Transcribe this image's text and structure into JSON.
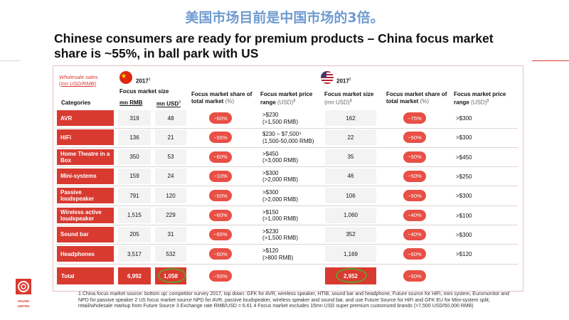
{
  "cn_title": "美国市场目前是中国市场的3倍。",
  "headline": "Chinese consumers are ready for premium products – China focus market share is ~55%, in ball park with US",
  "table": {
    "wholesale_line1": "Wholesale sales",
    "wholesale_line2": "(mn USD/RMB)",
    "categories_header": "Categories",
    "china": {
      "year": "2017",
      "year_note": "1",
      "size_header": "Focus market size",
      "rmb_header": "mn RMB",
      "usd_header": "mn USD",
      "usd_note": "3",
      "share_header": "Focus market share of total market",
      "share_unit": "(%)",
      "price_header": "Focus market price range",
      "price_unit": "(USD)",
      "price_note": "3"
    },
    "us": {
      "year": "2017",
      "year_note": "2",
      "size_header": "Focus market size",
      "size_unit": "(mn USD)",
      "size_note": "3",
      "share_header": "Focus market share of total market",
      "share_unit": "(%)",
      "price_header": "Focus market price range",
      "price_unit": "(USD)",
      "price_note": "3"
    },
    "rows": [
      {
        "category": "AVR",
        "rmb": "319",
        "usd": "48",
        "cn_share": "~60%",
        "cn_price1": ">$230",
        "cn_price2": "(>1,500 RMB)",
        "us_size": "162",
        "us_share": "~75%",
        "us_price": ">$300"
      },
      {
        "category": "HiFi",
        "rmb": "136",
        "usd": "21",
        "cn_share": "~55%",
        "cn_price1": "$230 – $7,500⁴",
        "cn_price2": "(1,500-50,000 RMB)",
        "us_size": "22",
        "us_share": "~50%",
        "us_price": ">$300"
      },
      {
        "category": "Home Theatre in a Box",
        "rmb": "350",
        "usd": "53",
        "cn_share": "~60%",
        "cn_price1": ">$450",
        "cn_price2": "(>3,000 RMB)",
        "us_size": "35",
        "us_share": "~50%",
        "us_price": ">$450"
      },
      {
        "category": "Mini-systems",
        "rmb": "159",
        "usd": "24",
        "cn_share": "~10%",
        "cn_price1": ">$300",
        "cn_price2": "(>2,000 RMB)",
        "us_size": "46",
        "us_share": "~50%",
        "us_price": ">$250"
      },
      {
        "category": "Passive loudspeaker",
        "rmb": "791",
        "usd": "120",
        "cn_share": "~50%",
        "cn_price1": ">$300",
        "cn_price2": "(>2,000 RMB)",
        "us_size": "106",
        "us_share": "~50%",
        "us_price": ">$300"
      },
      {
        "category": "Wireless active loudspeaker",
        "rmb": "1,515",
        "usd": "229",
        "cn_share": "~60%",
        "cn_price1": ">$150",
        "cn_price2": "(>1,000 RMB)",
        "us_size": "1,060",
        "us_share": "~40%",
        "us_price": ">$100"
      },
      {
        "category": "Sound bar",
        "rmb": "205",
        "usd": "31",
        "cn_share": "~65%",
        "cn_price1": ">$230",
        "cn_price2": "(>1,500 RMB)",
        "us_size": "352",
        "us_share": "~40%",
        "us_price": ">$300"
      },
      {
        "category": "Headphones",
        "rmb": "3,517",
        "usd": "532",
        "cn_share": "~60%",
        "cn_price1": ">$120",
        "cn_price2": "(>800 RMB)",
        "us_size": "1,169",
        "us_share": "~60%",
        "us_price": ">$120"
      }
    ],
    "total": {
      "label": "Total",
      "rmb": "6,992",
      "usd": "1,058",
      "cn_share": "~55%",
      "us_size": "2,952",
      "us_share": "~50%"
    }
  },
  "footnote": "1 China focus market source: bottom up: competitor survey 2017, top down: GFK for AVR, wireless speaker, HTIB, sound bar and headphone, Future source for HiFi, mini system, Euromonitor and NPD for passive speaker  2 US focus market source NPD for AVR, passive loudspeaker, wireless speaker and sound bar, and use Future Source for HiFi and GFK EU for Mini-system split; retail/wholesale markup from Future Source  3 Exchange rate RMB/USD = 6.61  4 Focus market excludes 15mn USD super premium customized brands (>7,500 USD/50,000 RMB)",
  "logo_text_1": "SOUND",
  "logo_text_2": "UNITED",
  "colors": {
    "accent_red": "#d83a30",
    "pill_red": "#e84f45",
    "ring_green": "#6a9a2a",
    "title_blue": "#6f9bd0"
  }
}
